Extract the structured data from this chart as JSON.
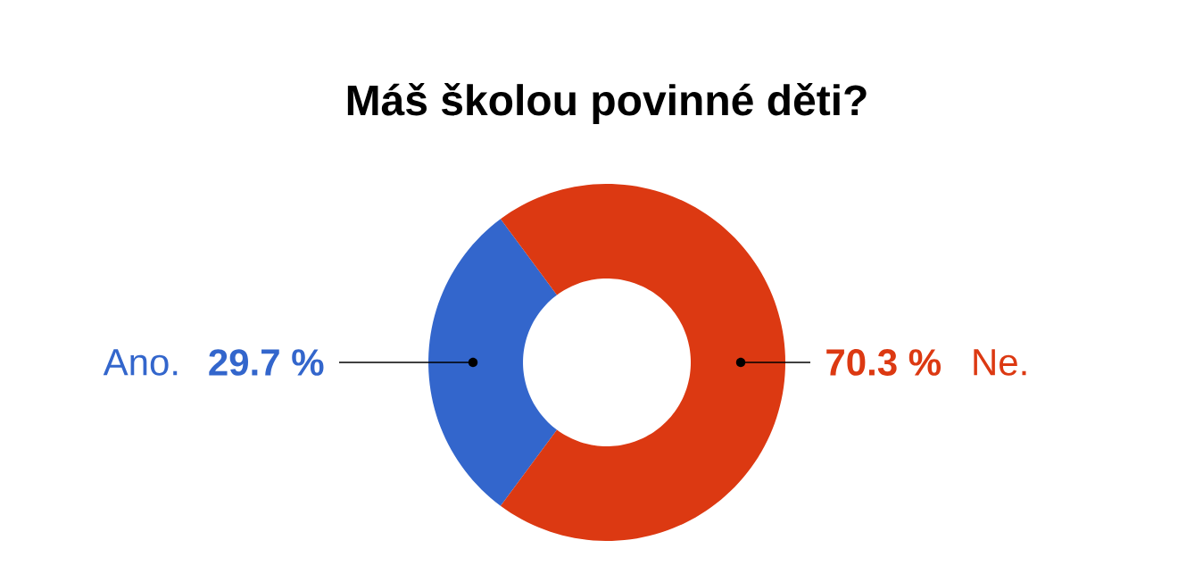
{
  "chart_data": {
    "type": "donut",
    "title": "Máš školou povinné děti?",
    "categories": [
      "Ano.",
      "Ne."
    ],
    "values": [
      29.7,
      70.3
    ],
    "colors": [
      "#3366cc",
      "#dc3912"
    ],
    "value_labels": [
      "29.7 %",
      "70.3 %"
    ]
  }
}
